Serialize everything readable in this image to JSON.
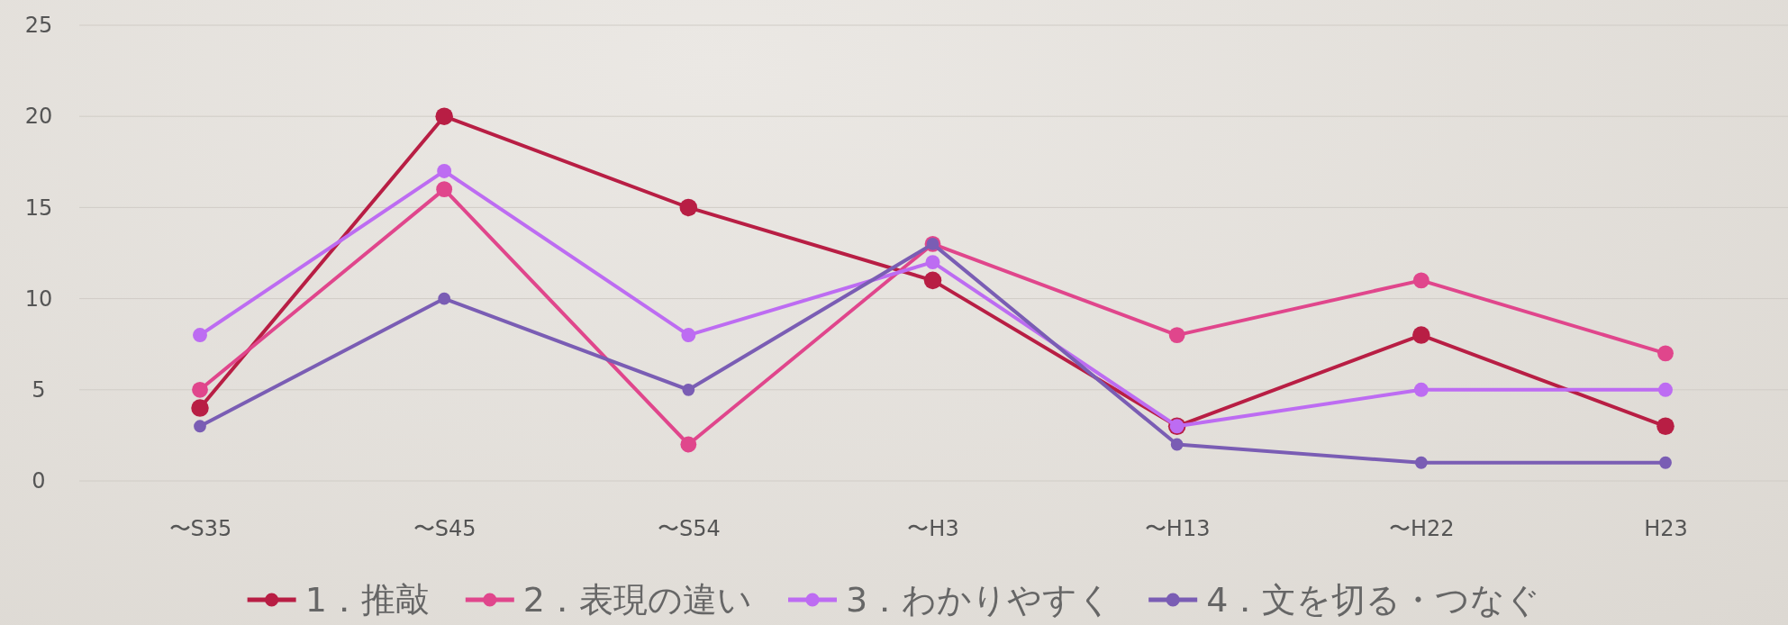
{
  "chart_data": {
    "type": "line",
    "categories": [
      "〜S35",
      "〜S45",
      "〜S54",
      "〜H3",
      "〜H13",
      "〜H22",
      "H23"
    ],
    "series": [
      {
        "name": "1．推敲",
        "color": "#b81e44",
        "values": [
          4,
          20,
          15,
          11,
          3,
          8,
          3
        ]
      },
      {
        "name": "2．表現の違い",
        "color": "#e0468c",
        "values": [
          5,
          16,
          2,
          13,
          8,
          11,
          7
        ]
      },
      {
        "name": "3．わかりやすく",
        "color": "#bd6cf2",
        "values": [
          8,
          17,
          8,
          12,
          3,
          5,
          5
        ]
      },
      {
        "name": "4．文を切る・つなぐ",
        "color": "#7a5db4",
        "values": [
          3,
          10,
          5,
          13,
          2,
          1,
          1
        ]
      }
    ],
    "ylim": [
      0,
      25
    ],
    "yticks": [
      0,
      5,
      10,
      15,
      20,
      25
    ],
    "grid": "y",
    "legend": "bottom",
    "marker": "circle",
    "line_style": "solid"
  }
}
